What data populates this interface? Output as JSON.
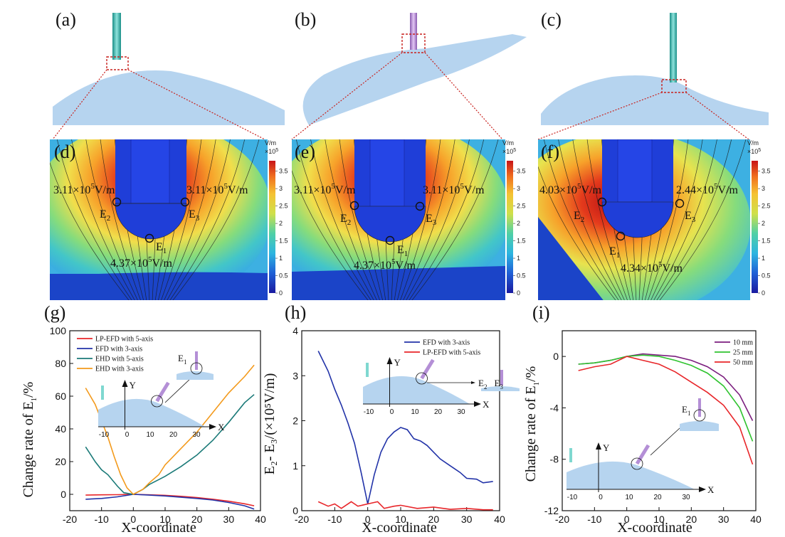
{
  "panels": {
    "a": "(a)",
    "b": "(b)",
    "c": "(c)",
    "d": "(d)",
    "e": "(e)",
    "f": "(f)",
    "g": "(g)",
    "h": "(h)",
    "i": "(i)"
  },
  "colorbar": {
    "unit": "V/m",
    "scale": "×10",
    "scale_exp": "5",
    "ticks": [
      "3.5",
      "3",
      "2.5",
      "2",
      "1.5",
      "1",
      "0.5",
      "0"
    ]
  },
  "field_annotations": {
    "d": {
      "left": "3.11×10",
      "left_unit": "V/m",
      "right": "3.11×10",
      "right_unit": "V/m",
      "bottom": "4.37×10",
      "bottom_unit": "V/m"
    },
    "e": {
      "left": "3.11×10",
      "left_unit": "V/m",
      "right": "3.11×10",
      "right_unit": "V/m",
      "bottom": "4.37×10",
      "bottom_unit": "V/m"
    },
    "f": {
      "left": "4.03×10",
      "left_unit": "V/m",
      "right": "2.44×10",
      "right_unit": "V/m",
      "bottom": "4.34×10",
      "bottom_unit": "V/m"
    },
    "exp": "5",
    "e_letter": "E",
    "e1_sub": "1",
    "e2_sub": "2",
    "e3_sub": "3"
  },
  "chart_data": [
    {
      "type": "line",
      "ylabel": "Change rate of E",
      "ylabel_sub": "1",
      "ylabel_suffix": "/%",
      "xlabel": "X-coordinate",
      "xlim": [
        -20,
        40
      ],
      "ylim": [
        -10,
        100
      ],
      "xticks": [
        "-20",
        "-10",
        "0",
        "10",
        "20",
        "30",
        "40"
      ],
      "yticks": [
        "0",
        "20",
        "40",
        "60",
        "80",
        "100"
      ],
      "series": [
        {
          "name": "LP-EFD with 5-axis",
          "color": "#e8262a",
          "x": [
            -15,
            -10,
            -5,
            0,
            5,
            10,
            15,
            20,
            25,
            30,
            35,
            38
          ],
          "y": [
            -0.5,
            -0.3,
            -0.2,
            0,
            -0.3,
            -0.6,
            -1.2,
            -2,
            -3,
            -4.2,
            -5.8,
            -7
          ]
        },
        {
          "name": "EFD with 3-axis",
          "color": "#2233a8",
          "x": [
            -15,
            -10,
            -5,
            0,
            5,
            10,
            15,
            20,
            25,
            30,
            35,
            38
          ],
          "y": [
            -3,
            -2.5,
            -1.5,
            0,
            -0.5,
            -1,
            -1.8,
            -2.5,
            -3.5,
            -5,
            -7,
            -9
          ]
        },
        {
          "name": "EHD with 5-axis",
          "color": "#1b7a78",
          "x": [
            -15,
            -12,
            -10,
            -8,
            -5,
            -3,
            0,
            3,
            5,
            8,
            10,
            15,
            20,
            25,
            30,
            35,
            38
          ],
          "y": [
            29,
            20,
            15,
            12,
            5,
            1,
            0,
            3,
            6,
            9,
            11,
            17,
            24,
            33,
            44,
            56,
            61
          ]
        },
        {
          "name": "EHD with 3-axis",
          "color": "#f39a1c",
          "x": [
            -15,
            -12,
            -10,
            -8,
            -6,
            -4,
            -2,
            0,
            3,
            5,
            8,
            10,
            15,
            20,
            25,
            30,
            35,
            38
          ],
          "y": [
            65,
            55,
            45,
            35,
            23,
            12,
            4,
            0,
            3,
            7,
            12,
            18,
            28,
            38,
            50,
            62,
            72,
            79
          ]
        }
      ],
      "inset": {
        "e_label": "E",
        "e_sub": "1",
        "x_axis": "X",
        "y_axis": "Y",
        "ticks": [
          "-10",
          "0",
          "10",
          "20",
          "30"
        ]
      }
    },
    {
      "type": "line",
      "ylabel": "E",
      "ylabel_full": "E₂- E₃/(×10⁵V/m)",
      "xlabel": "X-coordinate",
      "xlim": [
        -20,
        40
      ],
      "ylim": [
        0,
        4
      ],
      "xticks": [
        "-20",
        "-10",
        "0",
        "10",
        "20",
        "30",
        "40"
      ],
      "yticks": [
        "0",
        "1",
        "2",
        "3",
        "4"
      ],
      "series": [
        {
          "name": "EFD with 3-axis",
          "color": "#2233a8",
          "x": [
            -15,
            -12,
            -10,
            -8,
            -6,
            -4,
            -2,
            0,
            2,
            4,
            6,
            8,
            10,
            12,
            14,
            16,
            18,
            20,
            22,
            25,
            28,
            30,
            33,
            35,
            38
          ],
          "y": [
            3.55,
            3.1,
            2.7,
            2.35,
            1.95,
            1.5,
            0.85,
            0.15,
            0.8,
            1.3,
            1.6,
            1.75,
            1.85,
            1.8,
            1.6,
            1.55,
            1.45,
            1.3,
            1.15,
            1.0,
            0.85,
            0.72,
            0.7,
            0.62,
            0.65
          ]
        },
        {
          "name": "LP-EFD with 5-axis",
          "color": "#e8262a",
          "x": [
            -15,
            -12,
            -10,
            -8,
            -5,
            -3,
            0,
            3,
            5,
            8,
            10,
            15,
            20,
            25,
            30,
            35,
            38
          ],
          "y": [
            0.2,
            0.1,
            0.15,
            0.05,
            0.2,
            0.1,
            0.15,
            0.2,
            0.05,
            0.1,
            0.12,
            0.05,
            0.08,
            0.03,
            0.05,
            0.02,
            0.02
          ]
        }
      ],
      "inset": {
        "x_axis": "X",
        "y_axis": "Y",
        "e2": "E",
        "e2_sub": "2",
        "e3": "E",
        "e3_sub": "3",
        "ticks": [
          "-10",
          "0",
          "10",
          "20",
          "30"
        ]
      }
    },
    {
      "type": "line",
      "ylabel": "Change rate of E",
      "ylabel_sub": "1",
      "ylabel_suffix": "/%",
      "xlabel": "X-coordinate",
      "xlim": [
        -20,
        40
      ],
      "ylim": [
        -12,
        2
      ],
      "xticks": [
        "-20",
        "-10",
        "0",
        "10",
        "20",
        "30",
        "40"
      ],
      "yticks": [
        "0",
        "-4",
        "-8",
        "-12"
      ],
      "series": [
        {
          "name": "10 mm",
          "color": "#7b1d7e",
          "x": [
            -15,
            -10,
            -5,
            0,
            5,
            10,
            15,
            20,
            25,
            30,
            35,
            39
          ],
          "y": [
            -0.6,
            -0.5,
            -0.3,
            0,
            0.2,
            0.1,
            0,
            -0.3,
            -0.8,
            -1.6,
            -3,
            -5
          ]
        },
        {
          "name": "25 mm",
          "color": "#2fc32f",
          "x": [
            -15,
            -10,
            -5,
            0,
            5,
            10,
            15,
            20,
            25,
            30,
            35,
            39
          ],
          "y": [
            -0.6,
            -0.5,
            -0.3,
            0,
            0.1,
            0,
            -0.3,
            -0.7,
            -1.3,
            -2.3,
            -4,
            -6.6
          ]
        },
        {
          "name": "50 mm",
          "color": "#e8262a",
          "x": [
            -15,
            -10,
            -5,
            0,
            5,
            10,
            15,
            20,
            25,
            30,
            35,
            39
          ],
          "y": [
            -1.1,
            -0.8,
            -0.6,
            0,
            -0.3,
            -0.6,
            -1.2,
            -2,
            -2.8,
            -3.8,
            -5.5,
            -8.4
          ]
        }
      ],
      "inset": {
        "e_label": "E",
        "e_sub": "1",
        "x_axis": "X",
        "y_axis": "Y",
        "ticks": [
          "-10",
          "0",
          "10",
          "20",
          "30"
        ]
      }
    }
  ]
}
